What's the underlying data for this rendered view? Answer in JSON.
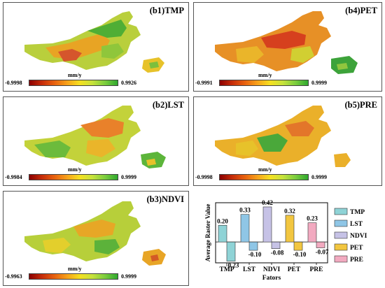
{
  "panels": [
    {
      "title": "(b1)TMP",
      "unit": "mm/y",
      "min": "-0.9998",
      "max": "0.9926"
    },
    {
      "title": "(b2)LST",
      "unit": "mm/y",
      "min": "-0.9984",
      "max": "0.9999"
    },
    {
      "title": "(b3)NDVI",
      "unit": "mm/y",
      "min": "-0.9963",
      "max": "0.9999"
    },
    {
      "title": "(b4)PET",
      "unit": "mm/y",
      "min": "-0.9991",
      "max": "0.9999"
    },
    {
      "title": "(b5)PRE",
      "unit": "mm/y",
      "min": "-0.9998",
      "max": "0.9999"
    }
  ],
  "colorbar_colors": [
    "#8b0000",
    "#c62d0a",
    "#e8620f",
    "#f7a21a",
    "#f5e020",
    "#c6e23c",
    "#7ccd3e",
    "#2fa82f"
  ],
  "chart_data": {
    "type": "bar",
    "categories": [
      "TMP",
      "LST",
      "NDVI",
      "PET",
      "PRE"
    ],
    "positive": [
      0.2,
      0.33,
      0.42,
      0.32,
      0.23
    ],
    "negative": [
      -0.23,
      -0.1,
      -0.08,
      -0.1,
      -0.07
    ],
    "positive_labels": [
      "0.20",
      "0.33",
      "0.42",
      "0.32",
      "0.23"
    ],
    "negative_labels": [
      "-0.23",
      "-0.10",
      "-0.08",
      "-0.10",
      "-0.07"
    ],
    "colors": [
      "#8fd3d6",
      "#8fc6e6",
      "#c6c2e6",
      "#f2c640",
      "#f2aac0"
    ],
    "xlabel": "Fators",
    "ylabel": "Average Raster Value",
    "ylim": [
      -0.25,
      0.47
    ],
    "legend": [
      "TMP",
      "LST",
      "NDVI",
      "PET",
      "PRE"
    ],
    "legend_placement": "right"
  }
}
